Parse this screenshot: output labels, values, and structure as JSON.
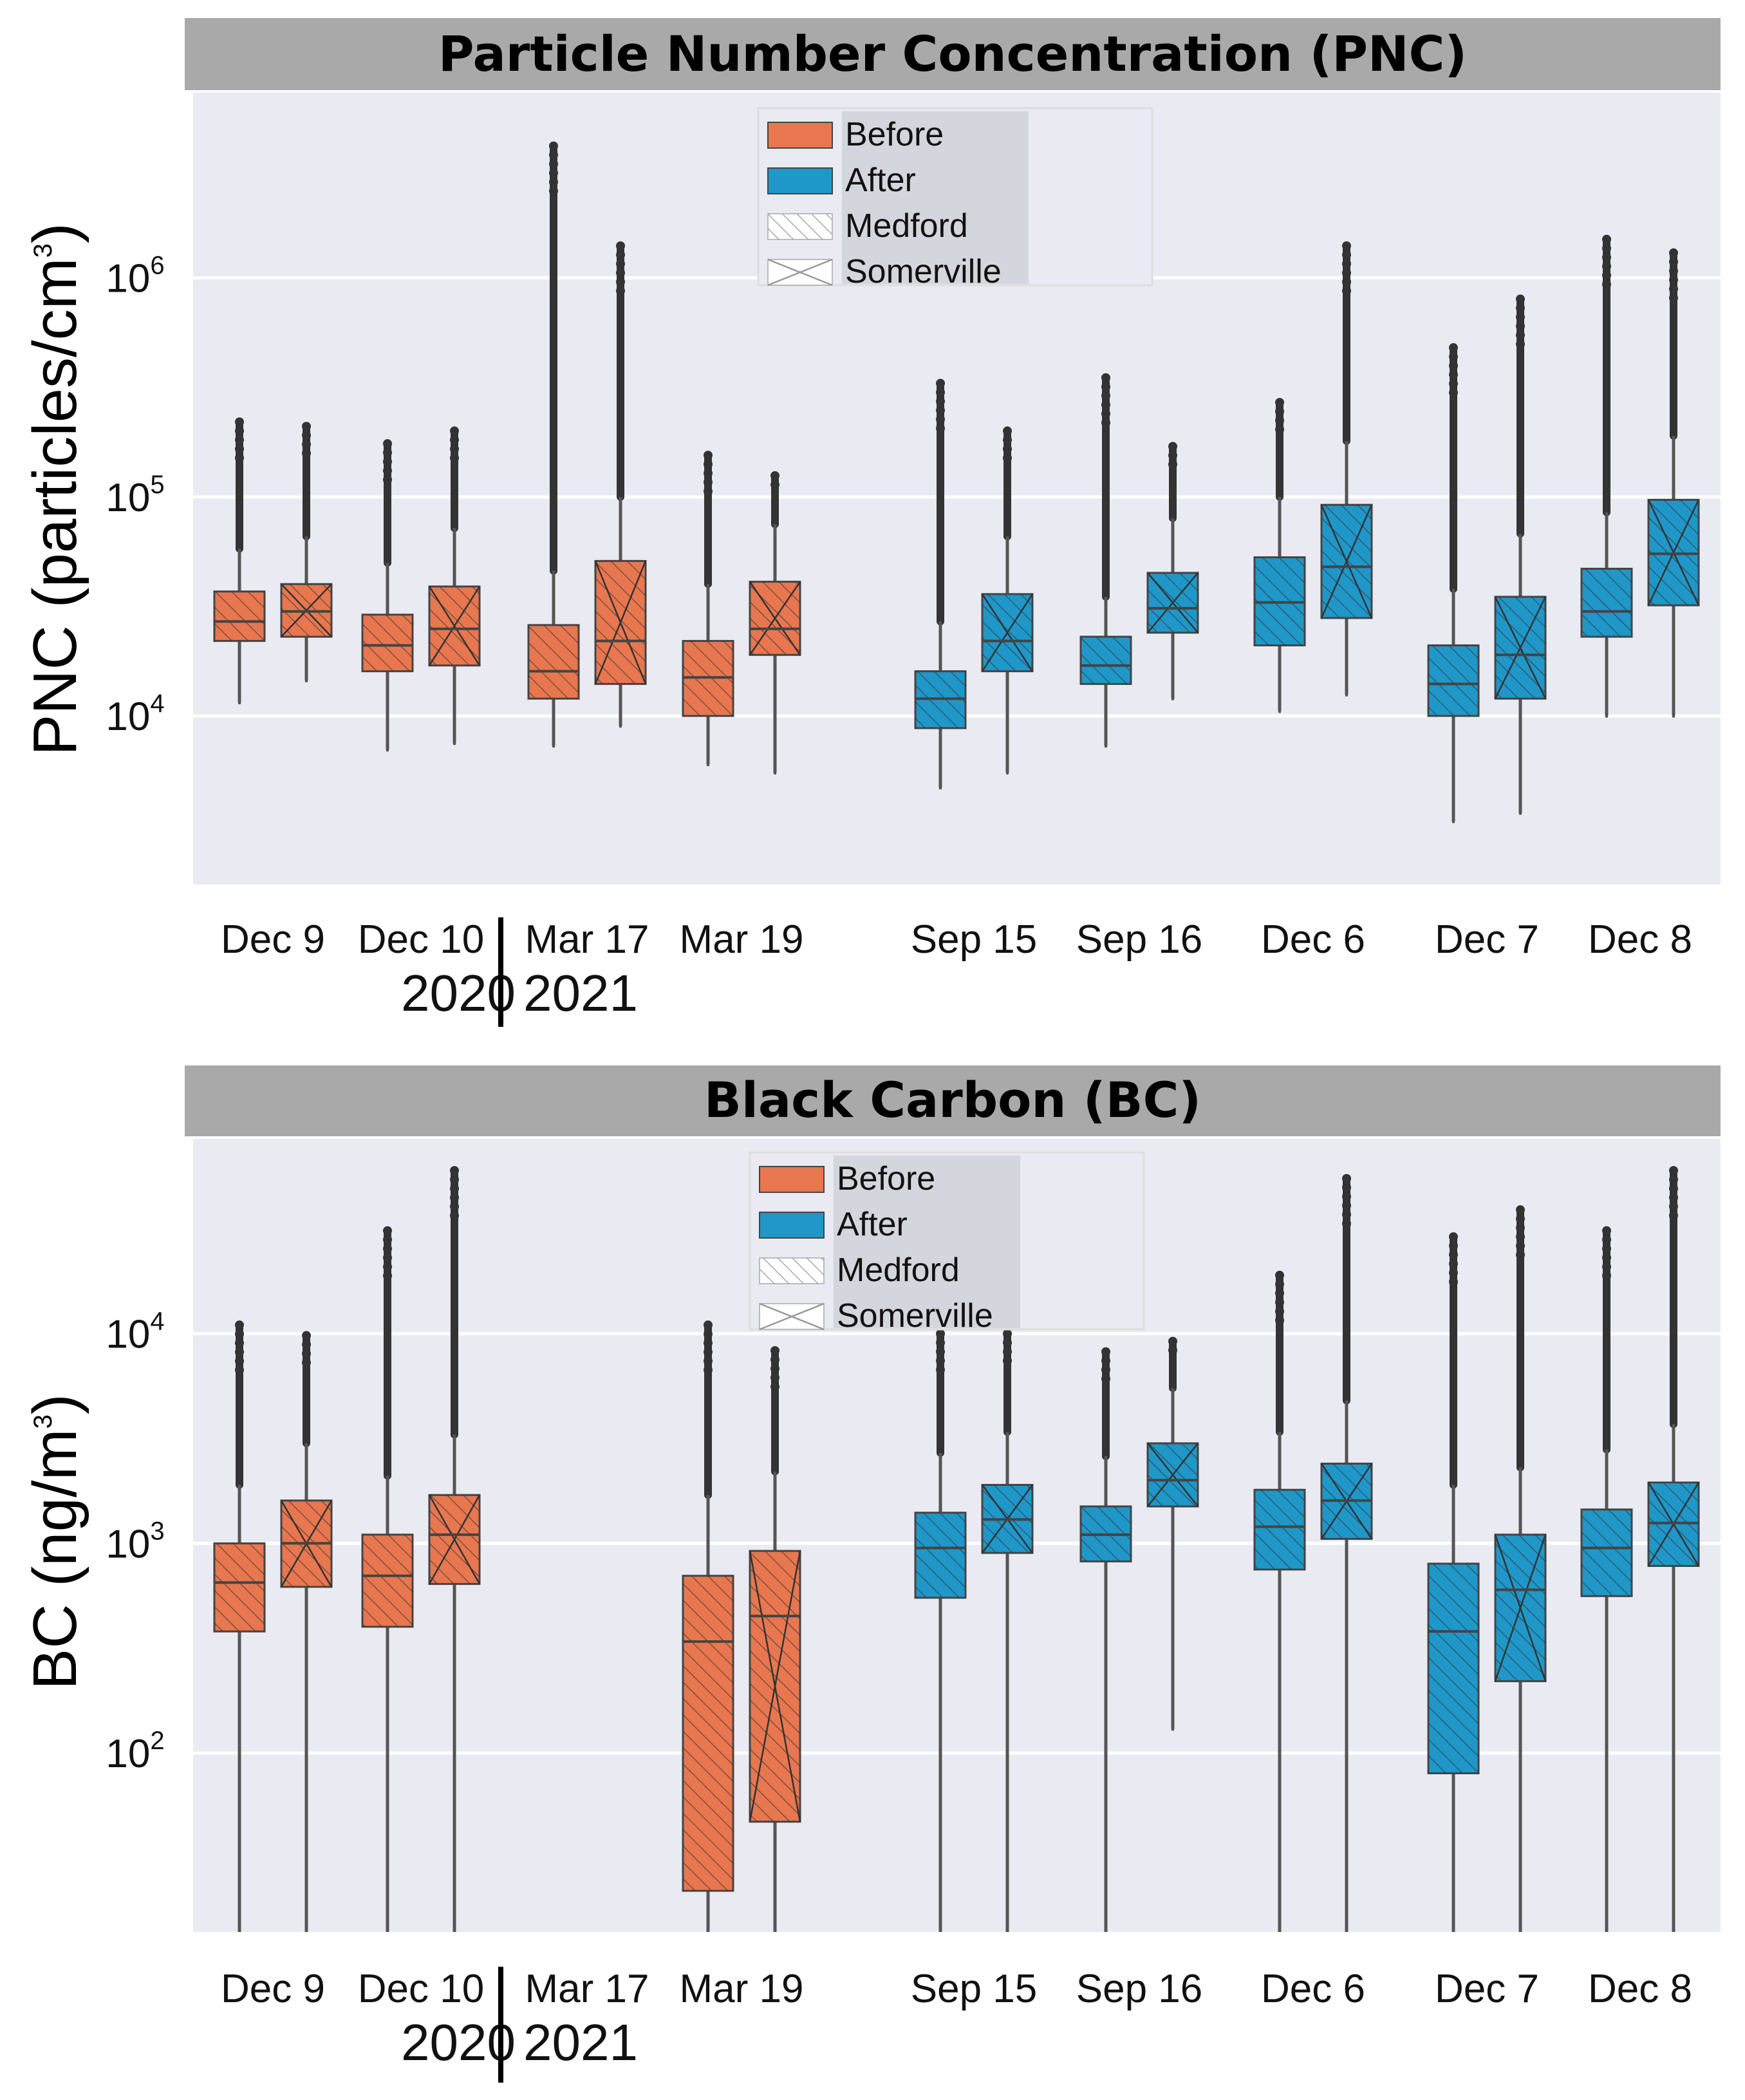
{
  "colors": {
    "before": "#e8774f",
    "after": "#1f97c9",
    "whisker": "#555555",
    "flier": "#333333"
  },
  "legend": [
    {
      "label": "Before",
      "kind": "before"
    },
    {
      "label": "After",
      "kind": "after"
    },
    {
      "label": "Medford",
      "kind": "medford"
    },
    {
      "label": "Somerville",
      "kind": "somerville"
    }
  ],
  "years": {
    "left": "2020",
    "right": "2021"
  },
  "chart_data": [
    {
      "type": "box",
      "title": "Particle Number Concentration (PNC)",
      "ylabel": "PNC (particles/cm",
      "ylabel_sup": "3",
      "ylabel_end": ")",
      "yscale": "log",
      "ylim": [
        1700,
        7000000
      ],
      "yticks": [
        {
          "base": "10",
          "exp": "4",
          "value": 10000
        },
        {
          "base": "10",
          "exp": "5",
          "value": 100000
        },
        {
          "base": "10",
          "exp": "6",
          "value": 1000000
        }
      ],
      "categories": [
        "Dec 9",
        "Dec 10",
        "Mar 17",
        "Mar 19",
        "Sep 15",
        "Sep 16",
        "Dec 6",
        "Dec 7",
        "Dec 8"
      ],
      "boxes": [
        {
          "category": "Dec 9",
          "site": "Medford",
          "period": "Before",
          "whislo": 11500,
          "q1": 22000,
          "med": 27000,
          "q3": 37000,
          "whishi": 58000,
          "fliermax": 220000
        },
        {
          "category": "Dec 9",
          "site": "Somerville",
          "period": "Before",
          "whislo": 14500,
          "q1": 23000,
          "med": 30000,
          "q3": 40000,
          "whishi": 66000,
          "fliermax": 210000
        },
        {
          "category": "Dec 10",
          "site": "Medford",
          "period": "Before",
          "whislo": 7000,
          "q1": 16000,
          "med": 21000,
          "q3": 29000,
          "whishi": 50000,
          "fliermax": 175000
        },
        {
          "category": "Dec 10",
          "site": "Somerville",
          "period": "Before",
          "whislo": 7500,
          "q1": 17000,
          "med": 25000,
          "q3": 39000,
          "whishi": 72000,
          "fliermax": 200000
        },
        {
          "category": "Mar 17",
          "site": "Medford",
          "period": "Before",
          "whislo": 7300,
          "q1": 12000,
          "med": 16000,
          "q3": 26000,
          "whishi": 46000,
          "fliermax": 4000000
        },
        {
          "category": "Mar 17",
          "site": "Somerville",
          "period": "Before",
          "whislo": 9000,
          "q1": 14000,
          "med": 22000,
          "q3": 51000,
          "whishi": 100000,
          "fliermax": 1400000
        },
        {
          "category": "Mar 19",
          "site": "Medford",
          "period": "Before",
          "whislo": 6000,
          "q1": 10000,
          "med": 15000,
          "q3": 22000,
          "whishi": 40000,
          "fliermax": 155000
        },
        {
          "category": "Mar 19",
          "site": "Somerville",
          "period": "Before",
          "whislo": 5500,
          "q1": 19000,
          "med": 25000,
          "q3": 41000,
          "whishi": 75000,
          "fliermax": 125000
        },
        {
          "category": "Sep 15",
          "site": "Medford",
          "period": "After",
          "whislo": 4700,
          "q1": 8800,
          "med": 12000,
          "q3": 16000,
          "whishi": 27000,
          "fliermax": 330000
        },
        {
          "category": "Sep 15",
          "site": "Somerville",
          "period": "After",
          "whislo": 5500,
          "q1": 16000,
          "med": 22000,
          "q3": 36000,
          "whishi": 66000,
          "fliermax": 200000
        },
        {
          "category": "Sep 16",
          "site": "Medford",
          "period": "After",
          "whislo": 7300,
          "q1": 14000,
          "med": 17000,
          "q3": 23000,
          "whishi": 35000,
          "fliermax": 350000
        },
        {
          "category": "Sep 16",
          "site": "Somerville",
          "period": "After",
          "whislo": 12000,
          "q1": 24000,
          "med": 31000,
          "q3": 45000,
          "whishi": 80000,
          "fliermax": 170000
        },
        {
          "category": "Dec 6",
          "site": "Medford",
          "period": "After",
          "whislo": 10500,
          "q1": 21000,
          "med": 33000,
          "q3": 53000,
          "whishi": 100000,
          "fliermax": 270000
        },
        {
          "category": "Dec 6",
          "site": "Somerville",
          "period": "After",
          "whislo": 12500,
          "q1": 28000,
          "med": 48000,
          "q3": 92000,
          "whishi": 180000,
          "fliermax": 1400000
        },
        {
          "category": "Dec 7",
          "site": "Medford",
          "period": "After",
          "whislo": 3300,
          "q1": 10000,
          "med": 14000,
          "q3": 21000,
          "whishi": 38000,
          "fliermax": 480000
        },
        {
          "category": "Dec 7",
          "site": "Somerville",
          "period": "After",
          "whislo": 3600,
          "q1": 12000,
          "med": 19000,
          "q3": 35000,
          "whishi": 68000,
          "fliermax": 800000
        },
        {
          "category": "Dec 8",
          "site": "Medford",
          "period": "After",
          "whislo": 10000,
          "q1": 23000,
          "med": 30000,
          "q3": 47000,
          "whishi": 85000,
          "fliermax": 1500000
        },
        {
          "category": "Dec 8",
          "site": "Somerville",
          "period": "After",
          "whislo": 10000,
          "q1": 32000,
          "med": 55000,
          "q3": 97000,
          "whishi": 190000,
          "fliermax": 1300000
        }
      ]
    },
    {
      "type": "box",
      "title": "Black Carbon (BC)",
      "ylabel": "BC (ng/m",
      "ylabel_sup": "3",
      "ylabel_end": ")",
      "yscale": "log",
      "ylim": [
        14,
        85000
      ],
      "yticks": [
        {
          "base": "10",
          "exp": "2",
          "value": 100
        },
        {
          "base": "10",
          "exp": "3",
          "value": 1000
        },
        {
          "base": "10",
          "exp": "4",
          "value": 10000
        }
      ],
      "categories": [
        "Dec 9",
        "Dec 10",
        "Mar 17",
        "Mar 19",
        "Sep 15",
        "Sep 16",
        "Dec 6",
        "Dec 7",
        "Dec 8"
      ],
      "boxes": [
        {
          "category": "Dec 9",
          "site": "Medford",
          "period": "Before",
          "whislo": 14,
          "q1": 380,
          "med": 650,
          "q3": 1000,
          "whishi": 1900,
          "fliermax": 11000
        },
        {
          "category": "Dec 9",
          "site": "Somerville",
          "period": "Before",
          "whislo": 14,
          "q1": 620,
          "med": 1000,
          "q3": 1600,
          "whishi": 3000,
          "fliermax": 9800
        },
        {
          "category": "Dec 10",
          "site": "Medford",
          "period": "Before",
          "whislo": 14,
          "q1": 400,
          "med": 700,
          "q3": 1100,
          "whishi": 2100,
          "fliermax": 31000
        },
        {
          "category": "Dec 10",
          "site": "Somerville",
          "period": "Before",
          "whislo": 14,
          "q1": 640,
          "med": 1100,
          "q3": 1700,
          "whishi": 3300,
          "fliermax": 60000
        },
        {
          "category": "Mar 19",
          "site": "Medford",
          "period": "Before",
          "whislo": 14,
          "q1": 22,
          "med": 340,
          "q3": 700,
          "whishi": 1700,
          "fliermax": 11000
        },
        {
          "category": "Mar 19",
          "site": "Somerville",
          "period": "Before",
          "whislo": 14,
          "q1": 47,
          "med": 450,
          "q3": 920,
          "whishi": 2200,
          "fliermax": 8300
        },
        {
          "category": "Sep 15",
          "site": "Medford",
          "period": "After",
          "whislo": 14,
          "q1": 550,
          "med": 950,
          "q3": 1400,
          "whishi": 2700,
          "fliermax": 10000
        },
        {
          "category": "Sep 15",
          "site": "Somerville",
          "period": "After",
          "whislo": 14,
          "q1": 900,
          "med": 1300,
          "q3": 1900,
          "whishi": 3400,
          "fliermax": 10000
        },
        {
          "category": "Sep 16",
          "site": "Medford",
          "period": "After",
          "whislo": 14,
          "q1": 820,
          "med": 1100,
          "q3": 1500,
          "whishi": 2600,
          "fliermax": 8200
        },
        {
          "category": "Sep 16",
          "site": "Somerville",
          "period": "After",
          "whislo": 130,
          "q1": 1500,
          "med": 2000,
          "q3": 3000,
          "whishi": 5500,
          "fliermax": 9200
        },
        {
          "category": "Dec 6",
          "site": "Medford",
          "period": "After",
          "whislo": 14,
          "q1": 750,
          "med": 1200,
          "q3": 1800,
          "whishi": 3400,
          "fliermax": 19000
        },
        {
          "category": "Dec 6",
          "site": "Somerville",
          "period": "After",
          "whislo": 14,
          "q1": 1050,
          "med": 1600,
          "q3": 2400,
          "whishi": 4800,
          "fliermax": 55000
        },
        {
          "category": "Dec 7",
          "site": "Medford",
          "period": "After",
          "whislo": 14,
          "q1": 80,
          "med": 380,
          "q3": 800,
          "whishi": 1900,
          "fliermax": 29000
        },
        {
          "category": "Dec 7",
          "site": "Somerville",
          "period": "After",
          "whislo": 14,
          "q1": 220,
          "med": 600,
          "q3": 1100,
          "whishi": 2300,
          "fliermax": 39000
        },
        {
          "category": "Dec 8",
          "site": "Medford",
          "period": "After",
          "whislo": 14,
          "q1": 560,
          "med": 950,
          "q3": 1450,
          "whishi": 2800,
          "fliermax": 31000
        },
        {
          "category": "Dec 8",
          "site": "Somerville",
          "period": "After",
          "whislo": 14,
          "q1": 780,
          "med": 1250,
          "q3": 1950,
          "whishi": 3700,
          "fliermax": 60000
        }
      ]
    }
  ]
}
